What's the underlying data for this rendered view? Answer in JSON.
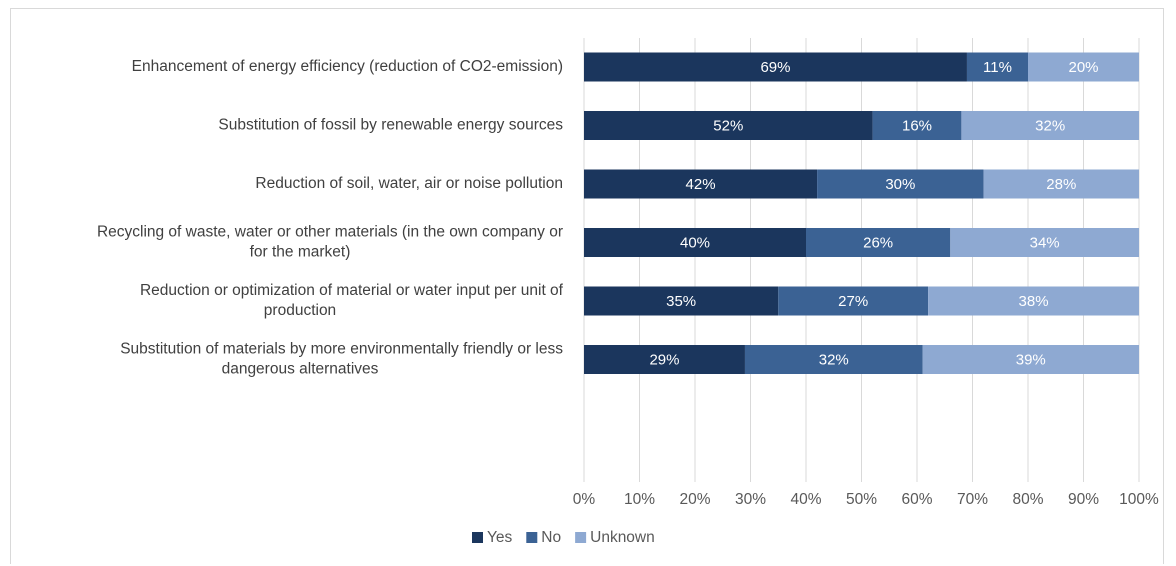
{
  "chart_data": {
    "type": "bar",
    "orientation": "horizontal",
    "stacked": "percent",
    "title": "",
    "xlabel": "",
    "ylabel": "",
    "xlim": [
      0,
      100
    ],
    "x_ticks": [
      "0%",
      "10%",
      "20%",
      "30%",
      "40%",
      "50%",
      "60%",
      "70%",
      "80%",
      "90%",
      "100%"
    ],
    "grid": "vertical",
    "legend_position": "bottom",
    "categories": [
      [
        "Enhancement of energy efficiency (reduction of CO2-emission)"
      ],
      [
        "Substitution of fossil by renewable energy sources"
      ],
      [
        "Reduction of soil, water, air or noise pollution"
      ],
      [
        "Recycling of waste, water or other materials (in the own company or",
        "for the market)"
      ],
      [
        "Reduction or optimization of material or water input per unit of",
        "production"
      ],
      [
        "Substitution of materials by more environmentally friendly or less",
        "dangerous alternatives"
      ]
    ],
    "series": [
      {
        "name": "Yes",
        "color": "#1b365d",
        "values": [
          69,
          52,
          42,
          40,
          35,
          29
        ],
        "labels": [
          "69%",
          "52%",
          "42%",
          "40%",
          "35%",
          "29%"
        ]
      },
      {
        "name": "No",
        "color": "#3b6294",
        "values": [
          11,
          16,
          30,
          26,
          27,
          32
        ],
        "labels": [
          "11%",
          "16%",
          "30%",
          "26%",
          "27%",
          "32%"
        ]
      },
      {
        "name": "Unknown",
        "color": "#8ea9d2",
        "values": [
          20,
          32,
          28,
          34,
          38,
          39
        ],
        "labels": [
          "20%",
          "32%",
          "28%",
          "34%",
          "38%",
          "39%"
        ]
      }
    ]
  }
}
